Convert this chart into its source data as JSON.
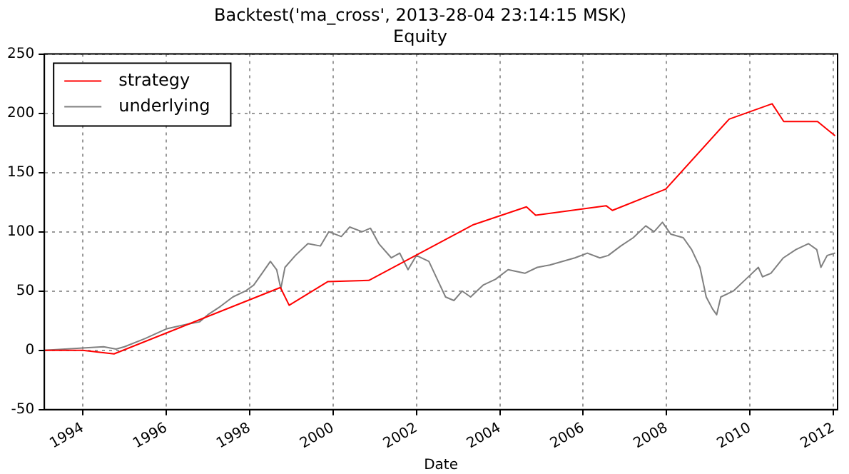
{
  "chart_data": {
    "type": "line",
    "title": "Backtest('ma_cross', 2013-28-04 23:14:15 MSK)",
    "subtitle": "Equity",
    "xlabel": "Date",
    "xlim": [
      1993.08,
      2012.1
    ],
    "xticks": [
      1994,
      1996,
      1998,
      2000,
      2002,
      2004,
      2006,
      2008,
      2010,
      2012
    ],
    "ylim": [
      -50,
      250
    ],
    "yticks": [
      -50,
      0,
      50,
      100,
      150,
      200,
      250
    ],
    "grid": true,
    "legend": "top left",
    "marker": "none",
    "line_style": "solid",
    "series": [
      {
        "name": "strategy",
        "color": "#ff0000",
        "x": [
          1993.08,
          1994,
          1994.75,
          1998.74,
          1998.95,
          1999.88,
          2000.86,
          2003.37,
          2004.64,
          2004.86,
          2006.55,
          2006.7,
          2007.98,
          2009.5,
          2010.53,
          2010.81,
          2011.62,
          2012.04
        ],
        "values": [
          0,
          0,
          -3,
          53,
          38,
          58,
          59,
          106,
          121,
          114,
          122,
          118,
          136,
          195,
          208,
          193,
          193,
          181
        ]
      },
      {
        "name": "underlying",
        "color": "#808080",
        "x": [
          1993.08,
          1994,
          1994.5,
          1994.8,
          1995,
          1995.5,
          1996,
          1996.5,
          1996.8,
          1997,
          1997.3,
          1997.6,
          1997.9,
          1998.1,
          1998.3,
          1998.5,
          1998.65,
          1998.75,
          1998.85,
          1999.1,
          1999.4,
          1999.7,
          1999.9,
          2000.2,
          2000.4,
          2000.7,
          2000.9,
          2001.1,
          2001.4,
          2001.6,
          2001.8,
          2002,
          2002.3,
          2002.5,
          2002.7,
          2002.9,
          2003.1,
          2003.3,
          2003.6,
          2003.9,
          2004.2,
          2004.6,
          2004.9,
          2005.2,
          2005.5,
          2005.8,
          2006.1,
          2006.4,
          2006.6,
          2006.9,
          2007.2,
          2007.5,
          2007.7,
          2007.9,
          2008.1,
          2008.4,
          2008.6,
          2008.8,
          2008.95,
          2009.1,
          2009.2,
          2009.3,
          2009.6,
          2009.9,
          2010.2,
          2010.3,
          2010.5,
          2010.8,
          2011.1,
          2011.4,
          2011.6,
          2011.7,
          2011.85,
          2012.04
        ],
        "values": [
          0,
          2,
          3,
          1,
          3,
          10,
          18,
          22,
          24,
          30,
          37,
          45,
          50,
          55,
          65,
          75,
          68,
          52,
          70,
          80,
          90,
          88,
          100,
          96,
          104,
          100,
          103,
          90,
          78,
          82,
          68,
          80,
          75,
          60,
          45,
          42,
          50,
          45,
          55,
          60,
          68,
          65,
          70,
          72,
          75,
          78,
          82,
          78,
          80,
          88,
          95,
          105,
          100,
          108,
          98,
          95,
          85,
          70,
          45,
          35,
          30,
          45,
          50,
          60,
          70,
          62,
          65,
          78,
          85,
          90,
          85,
          70,
          80,
          82
        ]
      }
    ]
  }
}
